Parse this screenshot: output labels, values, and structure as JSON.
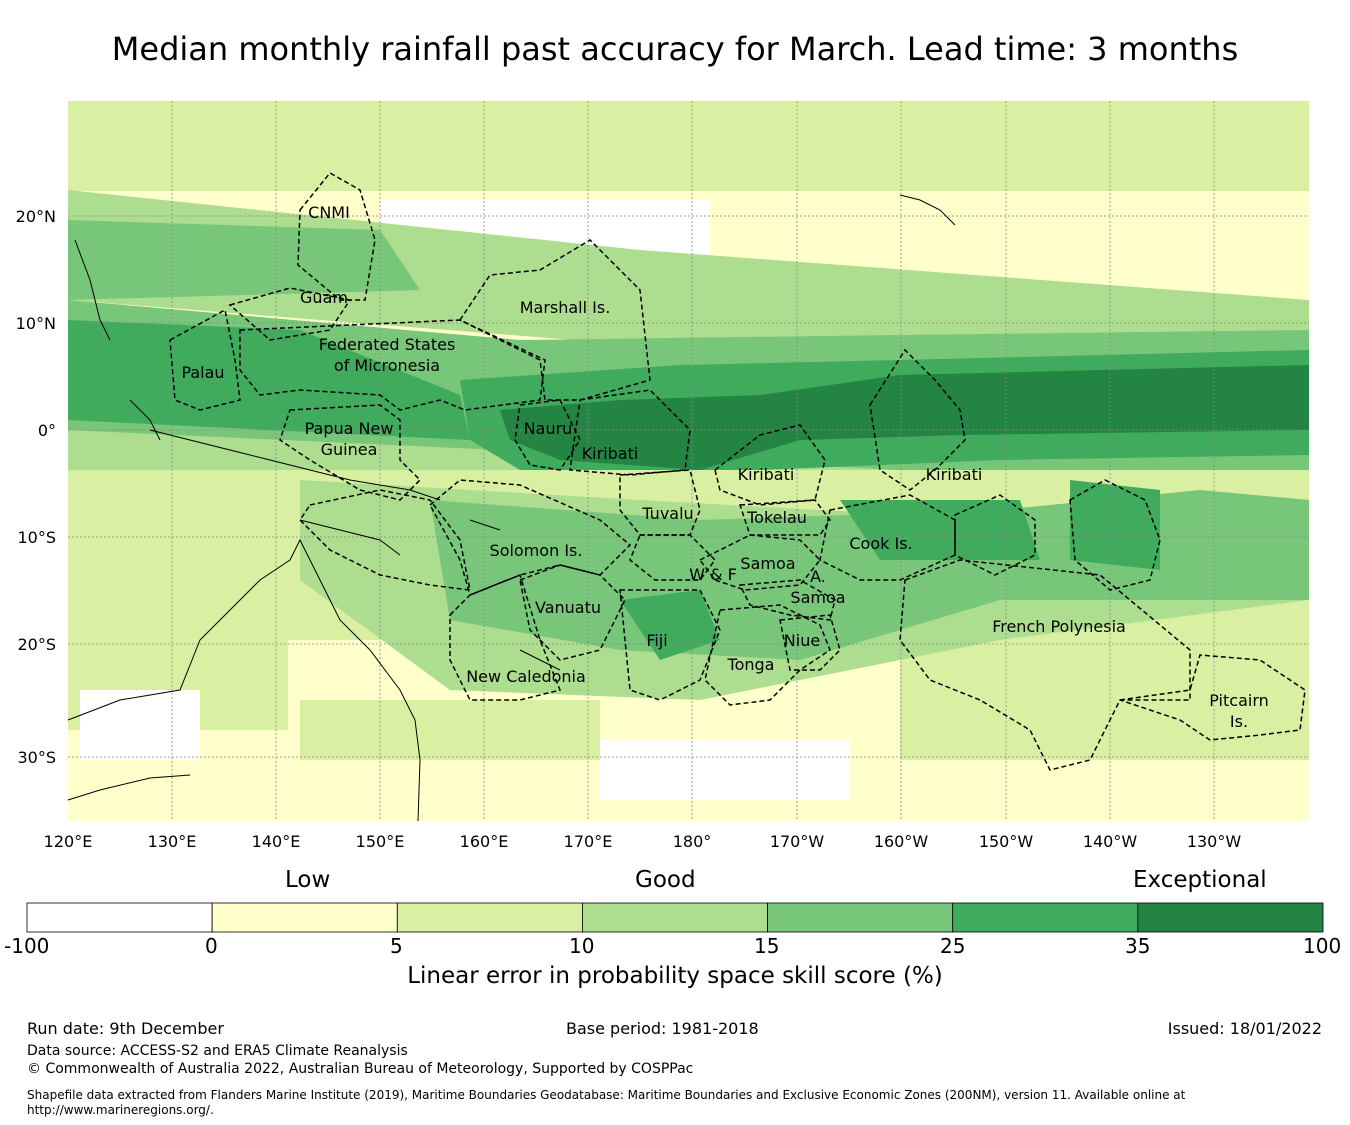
{
  "title": "Median monthly rainfall past accuracy for March. Lead time: 3 months",
  "map": {
    "lon_ticks": [
      "120°E",
      "130°E",
      "140°E",
      "150°E",
      "160°E",
      "170°E",
      "180°",
      "170°W",
      "160°W",
      "150°W",
      "140°W",
      "130°W"
    ],
    "lat_ticks": [
      "20°N",
      "10°N",
      "0°",
      "10°S",
      "20°S",
      "30°S"
    ],
    "regions": [
      "CNMI",
      "Guam",
      "Marshall Is.",
      "Palau",
      "Federated States",
      "of Micronesia",
      "Papua New",
      "Guinea",
      "Nauru",
      "Kiribati",
      "Kiribati",
      "Kiribati",
      "Tuvalu",
      "Tokelau",
      "Cook Is.",
      "Solomon Is.",
      "Samoa",
      "W & F",
      "A.",
      "Samoa",
      "Vanuatu",
      "Fiji",
      "Niue",
      "Tonga",
      "New Caledonia",
      "French Polynesia",
      "Pitcairn",
      "Is."
    ]
  },
  "colorbar": {
    "categories": [
      "Low",
      "Good",
      "Exceptional"
    ],
    "ticks": [
      "-100",
      "0",
      "5",
      "10",
      "15",
      "25",
      "35",
      "100"
    ],
    "colors": [
      "#ffffff",
      "#ffffcc",
      "#d9f0a3",
      "#addd8e",
      "#78c679",
      "#41ab5d",
      "#238443"
    ],
    "label": "Linear error in probability space skill score (%)"
  },
  "footer": {
    "run_date": "Run date: 9th December",
    "base_period": "Base period: 1981-2018",
    "issued": "Issued: 18/01/2022",
    "data_source": "Data source: ACCESS-S2 and ERA5 Climate Reanalysis",
    "copyright": "© Commonwealth of Australia 2022, Australian Bureau of Meteorology, Supported by COSPPac",
    "shapefile_line1": "Shapefile data extracted from Flanders Marine Institute (2019), Maritime Boundaries Geodatabase: Maritime Boundaries and Exclusive Economic Zones (200NM), version 11. Available online at",
    "shapefile_line2": "http://www.marineregions.org/."
  }
}
